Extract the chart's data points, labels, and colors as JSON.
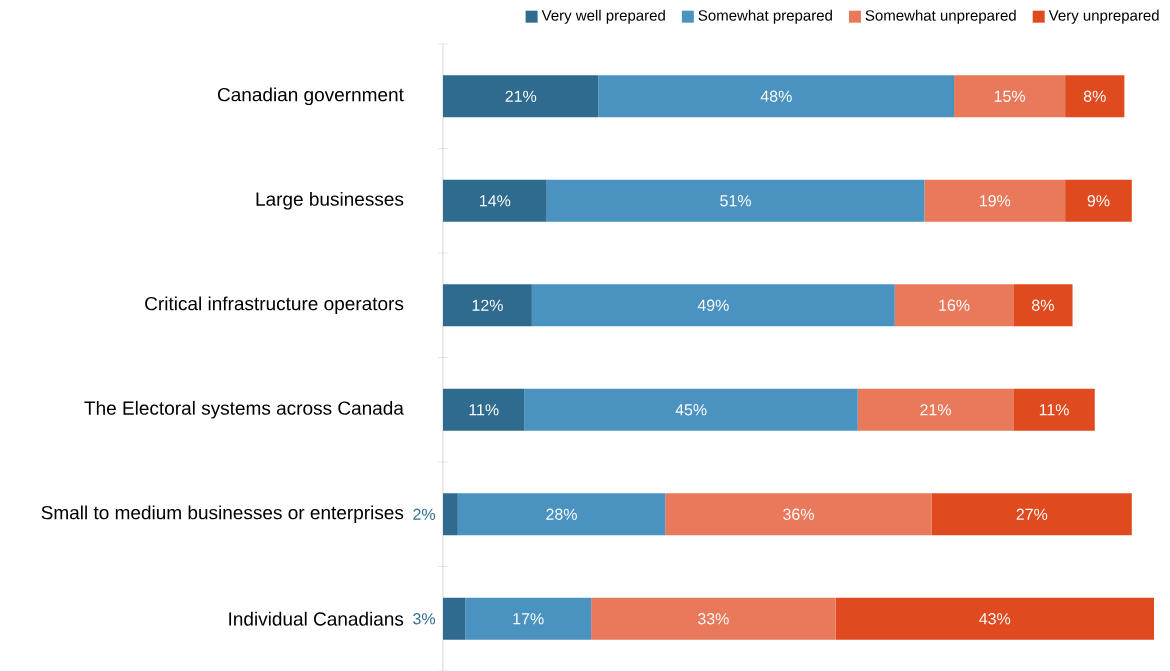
{
  "chart_data": {
    "type": "bar",
    "orientation": "horizontal",
    "stacked": true,
    "legend": "top right",
    "categories": [
      "Canadian government",
      "Large businesses",
      "Critical infrastructure operators",
      "The Electoral systems across Canada",
      "Small to medium businesses or enterprises",
      "Individual Canadians"
    ],
    "series": [
      {
        "name": "Very well prepared",
        "color": "#2f6b8e",
        "values": [
          21,
          14,
          12,
          11,
          2,
          3
        ],
        "value_labels": [
          "21%",
          "14%",
          "12%",
          "11%",
          "2%",
          "3%"
        ]
      },
      {
        "name": "Somewhat prepared",
        "color": "#4a92c0",
        "values": [
          48,
          51,
          49,
          45,
          28,
          17
        ],
        "value_labels": [
          "48%",
          "51%",
          "49%",
          "45%",
          "28%",
          "17%"
        ]
      },
      {
        "name": "Somewhat unprepared",
        "color": "#e8795a",
        "values": [
          15,
          19,
          16,
          21,
          36,
          33
        ],
        "value_labels": [
          "15%",
          "19%",
          "16%",
          "21%",
          "36%",
          "33%"
        ]
      },
      {
        "name": "Very unprepared",
        "color": "#e04a1f",
        "values": [
          8,
          9,
          8,
          11,
          27,
          43
        ],
        "value_labels": [
          "8%",
          "9%",
          "8%",
          "11%",
          "27%",
          "43%"
        ]
      }
    ]
  }
}
